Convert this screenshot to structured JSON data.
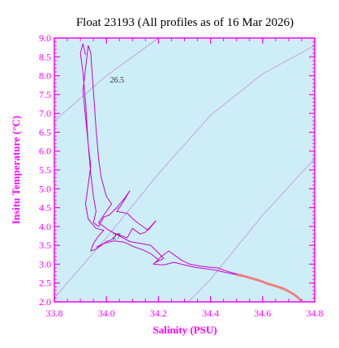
{
  "chart_data": {
    "type": "line",
    "title": "Float 23193  (All profiles as of 16 Mar 2026)",
    "xlabel": "Salinity (PSU)",
    "ylabel": "Insitu Temperature (°C)",
    "xlim": [
      33.8,
      34.8
    ],
    "ylim": [
      2.0,
      9.0
    ],
    "x_ticks": [
      "33.8",
      "34.0",
      "34.2",
      "34.4",
      "34.6",
      "34.8"
    ],
    "y_ticks": [
      "2.0",
      "2.5",
      "3.0",
      "3.5",
      "4.0",
      "4.5",
      "5.0",
      "5.5",
      "6.0",
      "6.5",
      "7.0",
      "7.5",
      "8.0",
      "8.5",
      "9.0"
    ],
    "isopycnal_labels": [
      {
        "text": "26.5",
        "x": 33.97,
        "y": 7.9
      },
      {
        "text": "27",
        "x": 33.98,
        "y": 3.75
      }
    ],
    "isopycnals": [
      {
        "name": "26.5",
        "points": [
          [
            33.8,
            6.8
          ],
          [
            34.0,
            8.0
          ],
          [
            34.2,
            9.0
          ]
        ]
      },
      {
        "name": "27",
        "points": [
          [
            33.8,
            2.1
          ],
          [
            34.0,
            3.7
          ],
          [
            34.2,
            5.4
          ],
          [
            34.4,
            6.95
          ],
          [
            34.6,
            8.05
          ],
          [
            34.8,
            8.8
          ]
        ]
      },
      {
        "name": "27.5",
        "points": [
          [
            34.2,
            1.2
          ],
          [
            34.4,
            2.6
          ],
          [
            34.6,
            4.3
          ],
          [
            34.8,
            5.8
          ]
        ]
      }
    ],
    "series": [
      {
        "points": [
          [
            33.92,
            8.55
          ],
          [
            33.91,
            8.85
          ],
          [
            33.9,
            8.6
          ],
          [
            33.91,
            8.1
          ],
          [
            33.92,
            7.3
          ],
          [
            33.93,
            6.2
          ],
          [
            33.94,
            5.4
          ],
          [
            33.95,
            4.8
          ],
          [
            33.96,
            4.4
          ],
          [
            33.95,
            4.1
          ],
          [
            33.97,
            4.0
          ],
          [
            33.99,
            4.25
          ],
          [
            34.01,
            4.3
          ],
          [
            34.04,
            4.5
          ],
          [
            34.07,
            4.75
          ],
          [
            34.09,
            4.95
          ],
          [
            34.06,
            4.6
          ],
          [
            34.04,
            4.4
          ],
          [
            34.08,
            4.35
          ],
          [
            34.11,
            4.15
          ],
          [
            34.14,
            4.0
          ],
          [
            34.16,
            3.9
          ],
          [
            34.19,
            4.15
          ],
          [
            34.15,
            3.85
          ],
          [
            34.13,
            3.8
          ],
          [
            34.1,
            3.95
          ],
          [
            34.08,
            3.7
          ],
          [
            34.04,
            3.8
          ],
          [
            34.02,
            3.65
          ],
          [
            34.0,
            3.6
          ],
          [
            33.96,
            3.4
          ],
          [
            33.94,
            3.35
          ],
          [
            33.95,
            3.55
          ],
          [
            33.97,
            3.75
          ],
          [
            33.99,
            3.9
          ],
          [
            33.96,
            3.95
          ],
          [
            33.93,
            4.2
          ],
          [
            33.92,
            4.6
          ],
          [
            33.93,
            5.1
          ],
          [
            33.94,
            5.6
          ],
          [
            33.93,
            6.2
          ],
          [
            33.92,
            6.9
          ],
          [
            33.91,
            7.6
          ],
          [
            33.92,
            8.2
          ],
          [
            33.93,
            8.8
          ],
          [
            33.94,
            8.6
          ],
          [
            33.95,
            7.6
          ],
          [
            33.96,
            6.6
          ],
          [
            33.97,
            5.8
          ],
          [
            33.98,
            5.3
          ],
          [
            34.0,
            4.8
          ],
          [
            34.02,
            4.6
          ],
          [
            33.99,
            4.3
          ],
          [
            33.97,
            4.1
          ],
          [
            34.01,
            3.9
          ],
          [
            34.05,
            3.75
          ],
          [
            34.09,
            3.6
          ],
          [
            34.13,
            3.55
          ],
          [
            34.17,
            3.5
          ],
          [
            34.2,
            3.3
          ],
          [
            34.22,
            3.15
          ],
          [
            34.19,
            3.05
          ],
          [
            34.21,
            3.2
          ],
          [
            34.24,
            3.35
          ],
          [
            34.26,
            3.25
          ],
          [
            34.29,
            3.1
          ],
          [
            34.32,
            3.0
          ],
          [
            34.36,
            2.95
          ],
          [
            34.4,
            2.92
          ],
          [
            34.43,
            2.9
          ],
          [
            34.46,
            2.82
          ],
          [
            34.49,
            2.76
          ],
          [
            34.52,
            2.72
          ]
        ]
      },
      {
        "points": [
          [
            33.96,
            3.45
          ],
          [
            33.99,
            3.55
          ],
          [
            34.03,
            3.62
          ],
          [
            34.07,
            3.58
          ],
          [
            34.1,
            3.48
          ],
          [
            34.14,
            3.38
          ],
          [
            34.17,
            3.28
          ],
          [
            34.2,
            3.12
          ],
          [
            34.18,
            3.0
          ],
          [
            34.22,
            2.98
          ],
          [
            34.26,
            3.05
          ],
          [
            34.3,
            2.98
          ],
          [
            34.34,
            2.92
          ],
          [
            34.38,
            2.88
          ],
          [
            34.42,
            2.84
          ],
          [
            34.46,
            2.78
          ],
          [
            34.5,
            2.72
          ]
        ]
      },
      {
        "points": [
          [
            34.5,
            2.72
          ],
          [
            34.53,
            2.68
          ],
          [
            34.56,
            2.62
          ],
          [
            34.59,
            2.56
          ],
          [
            34.62,
            2.48
          ],
          [
            34.65,
            2.42
          ],
          [
            34.68,
            2.35
          ],
          [
            34.7,
            2.28
          ],
          [
            34.72,
            2.2
          ],
          [
            34.735,
            2.12
          ],
          [
            34.745,
            2.05
          ],
          [
            34.75,
            2.0
          ]
        ]
      }
    ],
    "colors": {
      "axis": "#ff00ff",
      "plot_background": "#cdeef7",
      "profile": "#cc00cc",
      "deep_profile": "#f08080",
      "isopycnal": "#c090d8",
      "title": "#000000"
    },
    "grid": false,
    "legend": "none"
  }
}
